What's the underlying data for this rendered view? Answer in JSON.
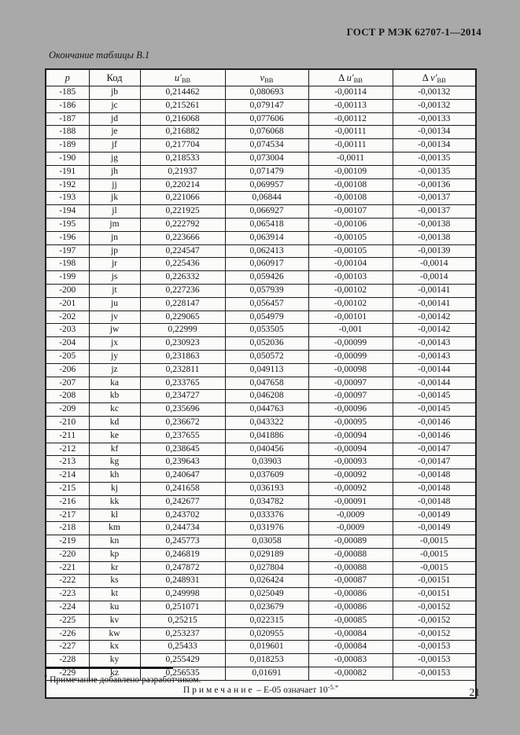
{
  "page": {
    "header": "ГОСТ Р МЭК 62707-1—2014",
    "caption": "Окончание таблицы В.1",
    "footnote_marker": "*",
    "footnote_text": " Примечание добавлено разработчиком.",
    "page_number": "21"
  },
  "table": {
    "headers": [
      {
        "prefix": "",
        "main": "p",
        "sub": "",
        "italic": true
      },
      {
        "prefix": "",
        "main": "Код",
        "sub": "",
        "italic": false
      },
      {
        "prefix": "",
        "main": "u′",
        "sub": "ВВ",
        "italic": true
      },
      {
        "prefix": "",
        "main": "v",
        "sub": "ВВ",
        "italic": true
      },
      {
        "prefix": "Δ ",
        "main": "u′",
        "sub": "ВВ",
        "italic": true
      },
      {
        "prefix": "Δ ",
        "main": "v′",
        "sub": "ВВ",
        "italic": true
      }
    ],
    "rows": [
      [
        "-185",
        "jb",
        "0,214462",
        "0,080693",
        "-0,00114",
        "-0,00132"
      ],
      [
        "-186",
        "jc",
        "0,215261",
        "0,079147",
        "-0,00113",
        "-0,00132"
      ],
      [
        "-187",
        "jd",
        "0,216068",
        "0,077606",
        "-0,00112",
        "-0,00133"
      ],
      [
        "-188",
        "je",
        "0,216882",
        "0,076068",
        "-0,00111",
        "-0,00134"
      ],
      [
        "-189",
        "jf",
        "0,217704",
        "0,074534",
        "-0,00111",
        "-0,00134"
      ],
      [
        "-190",
        "jg",
        "0,218533",
        "0,073004",
        "-0,0011",
        "-0,00135"
      ],
      [
        "-191",
        "jh",
        "0,21937",
        "0,071479",
        "-0,00109",
        "-0,00135"
      ],
      [
        "-192",
        "jj",
        "0,220214",
        "0,069957",
        "-0,00108",
        "-0,00136"
      ],
      [
        "-193",
        "jk",
        "0,221066",
        "0,06844",
        "-0,00108",
        "-0,00137"
      ],
      [
        "-194",
        "jl",
        "0,221925",
        "0,066927",
        "-0,00107",
        "-0,00137"
      ],
      [
        "-195",
        "jm",
        "0,222792",
        "0,065418",
        "-0,00106",
        "-0,00138"
      ],
      [
        "-196",
        "jn",
        "0,223666",
        "0,063914",
        "-0,00105",
        "-0,00138"
      ],
      [
        "-197",
        "jp",
        "0,224547",
        "0,062413",
        "-0,00105",
        "-0,00139"
      ],
      [
        "-198",
        "jr",
        "0,225436",
        "0,060917",
        "-0,00104",
        "-0,0014"
      ],
      [
        "-199",
        "js",
        "0,226332",
        "0,059426",
        "-0,00103",
        "-0,0014"
      ],
      [
        "-200",
        "jt",
        "0,227236",
        "0,057939",
        "-0,00102",
        "-0,00141"
      ],
      [
        "-201",
        "ju",
        "0,228147",
        "0,056457",
        "-0,00102",
        "-0,00141"
      ],
      [
        "-202",
        "jv",
        "0,229065",
        "0,054979",
        "-0,00101",
        "-0,00142"
      ],
      [
        "-203",
        "jw",
        "0,22999",
        "0,053505",
        "-0,001",
        "-0,00142"
      ],
      [
        "-204",
        "jx",
        "0,230923",
        "0,052036",
        "-0,00099",
        "-0,00143"
      ],
      [
        "-205",
        "jy",
        "0,231863",
        "0,050572",
        "-0,00099",
        "-0,00143"
      ],
      [
        "-206",
        "jz",
        "0,232811",
        "0,049113",
        "-0,00098",
        "-0,00144"
      ],
      [
        "-207",
        "ka",
        "0,233765",
        "0,047658",
        "-0,00097",
        "-0,00144"
      ],
      [
        "-208",
        "kb",
        "0,234727",
        "0,046208",
        "-0,00097",
        "-0,00145"
      ],
      [
        "-209",
        "kc",
        "0,235696",
        "0,044763",
        "-0,00096",
        "-0,00145"
      ],
      [
        "-210",
        "kd",
        "0,236672",
        "0,043322",
        "-0,00095",
        "-0,00146"
      ],
      [
        "-211",
        "ke",
        "0,237655",
        "0,041886",
        "-0,00094",
        "-0,00146"
      ],
      [
        "-212",
        "kf",
        "0,238645",
        "0,040456",
        "-0,00094",
        "-0,00147"
      ],
      [
        "-213",
        "kg",
        "0,239643",
        "0,03903",
        "-0,00093",
        "-0,00147"
      ],
      [
        "-214",
        "kh",
        "0,240647",
        "0,037609",
        "-0,00092",
        "-0,00148"
      ],
      [
        "-215",
        "kj",
        "0,241658",
        "0,036193",
        "-0,00092",
        "-0,00148"
      ],
      [
        "-216",
        "kk",
        "0,242677",
        "0,034782",
        "-0,00091",
        "-0,00148"
      ],
      [
        "-217",
        "kl",
        "0,243702",
        "0,033376",
        "-0,0009",
        "-0,00149"
      ],
      [
        "-218",
        "km",
        "0,244734",
        "0,031976",
        "-0,0009",
        "-0,00149"
      ],
      [
        "-219",
        "kn",
        "0,245773",
        "0,03058",
        "-0,00089",
        "-0,0015"
      ],
      [
        "-220",
        "kp",
        "0,246819",
        "0,029189",
        "-0,00088",
        "-0,0015"
      ],
      [
        "-221",
        "kr",
        "0,247872",
        "0,027804",
        "-0,00088",
        "-0,0015"
      ],
      [
        "-222",
        "ks",
        "0,248931",
        "0,026424",
        "-0,00087",
        "-0,00151"
      ],
      [
        "-223",
        "kt",
        "0,249998",
        "0,025049",
        "-0,00086",
        "-0,00151"
      ],
      [
        "-224",
        "ku",
        "0,251071",
        "0,023679",
        "-0,00086",
        "-0,00152"
      ],
      [
        "-225",
        "kv",
        "0,25215",
        "0,022315",
        "-0,00085",
        "-0,00152"
      ],
      [
        "-226",
        "kw",
        "0,253237",
        "0,020955",
        "-0,00084",
        "-0,00152"
      ],
      [
        "-227",
        "kx",
        "0,25433",
        "0,019601",
        "-0,00084",
        "-0,00153"
      ],
      [
        "-228",
        "ky",
        "0,255429",
        "0,018253",
        "-0,00083",
        "-0,00153"
      ],
      [
        "-229",
        "kz",
        "0,256535",
        "0,01691",
        "-0,00082",
        "-0,00153"
      ]
    ],
    "note": {
      "label": "Примечание",
      "body": " – Е-05 означает 10",
      "exponent": "-5.",
      "marker": "*"
    }
  }
}
